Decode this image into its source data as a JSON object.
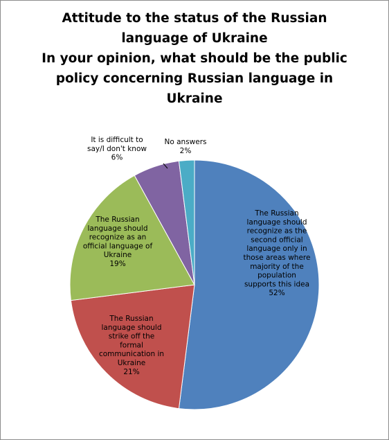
{
  "chart_data": {
    "type": "pie",
    "title_lines": [
      "Attitude to the status of the Russian",
      "language of Ukraine",
      "In your opinion, what should be the public",
      "policy concerning Russian language in",
      "Ukraine"
    ],
    "slices": [
      {
        "label_lines": [
          "The Russian",
          "language should",
          "recognize as the",
          "second official",
          "language only in",
          "those areas where",
          "majority of the",
          "population",
          "supports this idea"
        ],
        "value": 52,
        "value_label": "52%",
        "color": "#4f81bd"
      },
      {
        "label_lines": [
          "The Russian",
          "language should",
          "strike off the",
          "formal",
          "communication in",
          "Ukraine"
        ],
        "value": 21,
        "value_label": "21%",
        "color": "#c0504d"
      },
      {
        "label_lines": [
          "The Russian",
          "language should",
          "recognize as an",
          "official language of",
          "Ukraine"
        ],
        "value": 19,
        "value_label": "19%",
        "color": "#9bbb59"
      },
      {
        "label_lines": [
          "It is difficult to",
          "say/I don't know"
        ],
        "value": 6,
        "value_label": "6%",
        "color": "#8064a2"
      },
      {
        "label_lines": [
          "No answers"
        ],
        "value": 2,
        "value_label": "2%",
        "color": "#4bacc6"
      }
    ]
  }
}
